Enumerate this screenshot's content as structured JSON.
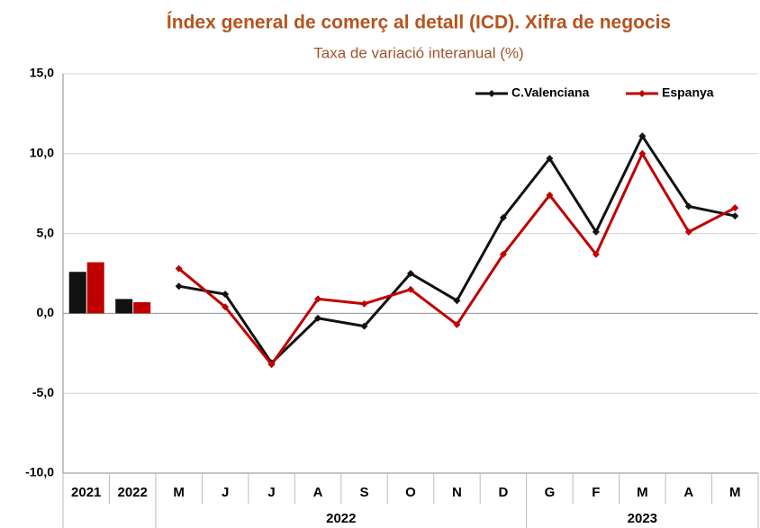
{
  "chart_data": {
    "type": "bar+line",
    "title": "Índex general de comerç al detall (ICD).  Xifra de negocis",
    "subtitle": "Taxa de variació interanual (%)",
    "categories": [
      "2021",
      "2022",
      "M",
      "J",
      "J",
      "A",
      "S",
      "O",
      "N",
      "D",
      "G",
      "F",
      "M",
      "A",
      "M"
    ],
    "mark_types": [
      "bar",
      "bar",
      "line",
      "line",
      "line",
      "line",
      "line",
      "line",
      "line",
      "line",
      "line",
      "line",
      "line",
      "line",
      "line"
    ],
    "groups": [
      {
        "label": "2022",
        "start": 2,
        "end": 9
      },
      {
        "label": "2023",
        "start": 10,
        "end": 14
      }
    ],
    "series": [
      {
        "name": "C.Valenciana",
        "color": "#111111",
        "values": [
          2.6,
          0.9,
          1.7,
          1.2,
          -3.1,
          -0.3,
          -0.8,
          2.5,
          0.8,
          6.0,
          9.7,
          5.1,
          11.1,
          6.7,
          6.1
        ]
      },
      {
        "name": "Espanya",
        "color": "#c00000",
        "values": [
          3.2,
          0.7,
          2.8,
          0.4,
          -3.2,
          0.9,
          0.6,
          1.5,
          -0.7,
          3.7,
          7.4,
          3.7,
          10.0,
          5.1,
          6.6
        ]
      }
    ],
    "ylim": [
      -10,
      15
    ],
    "yticks": [
      {
        "value": -10,
        "label": "-10,0"
      },
      {
        "value": -5,
        "label": "-5,0"
      },
      {
        "value": 0,
        "label": "0,0"
      },
      {
        "value": 5,
        "label": "5,0"
      },
      {
        "value": 10,
        "label": "10,0"
      },
      {
        "value": 15,
        "label": "15,0"
      }
    ],
    "grid": true,
    "legend": "top-right"
  }
}
